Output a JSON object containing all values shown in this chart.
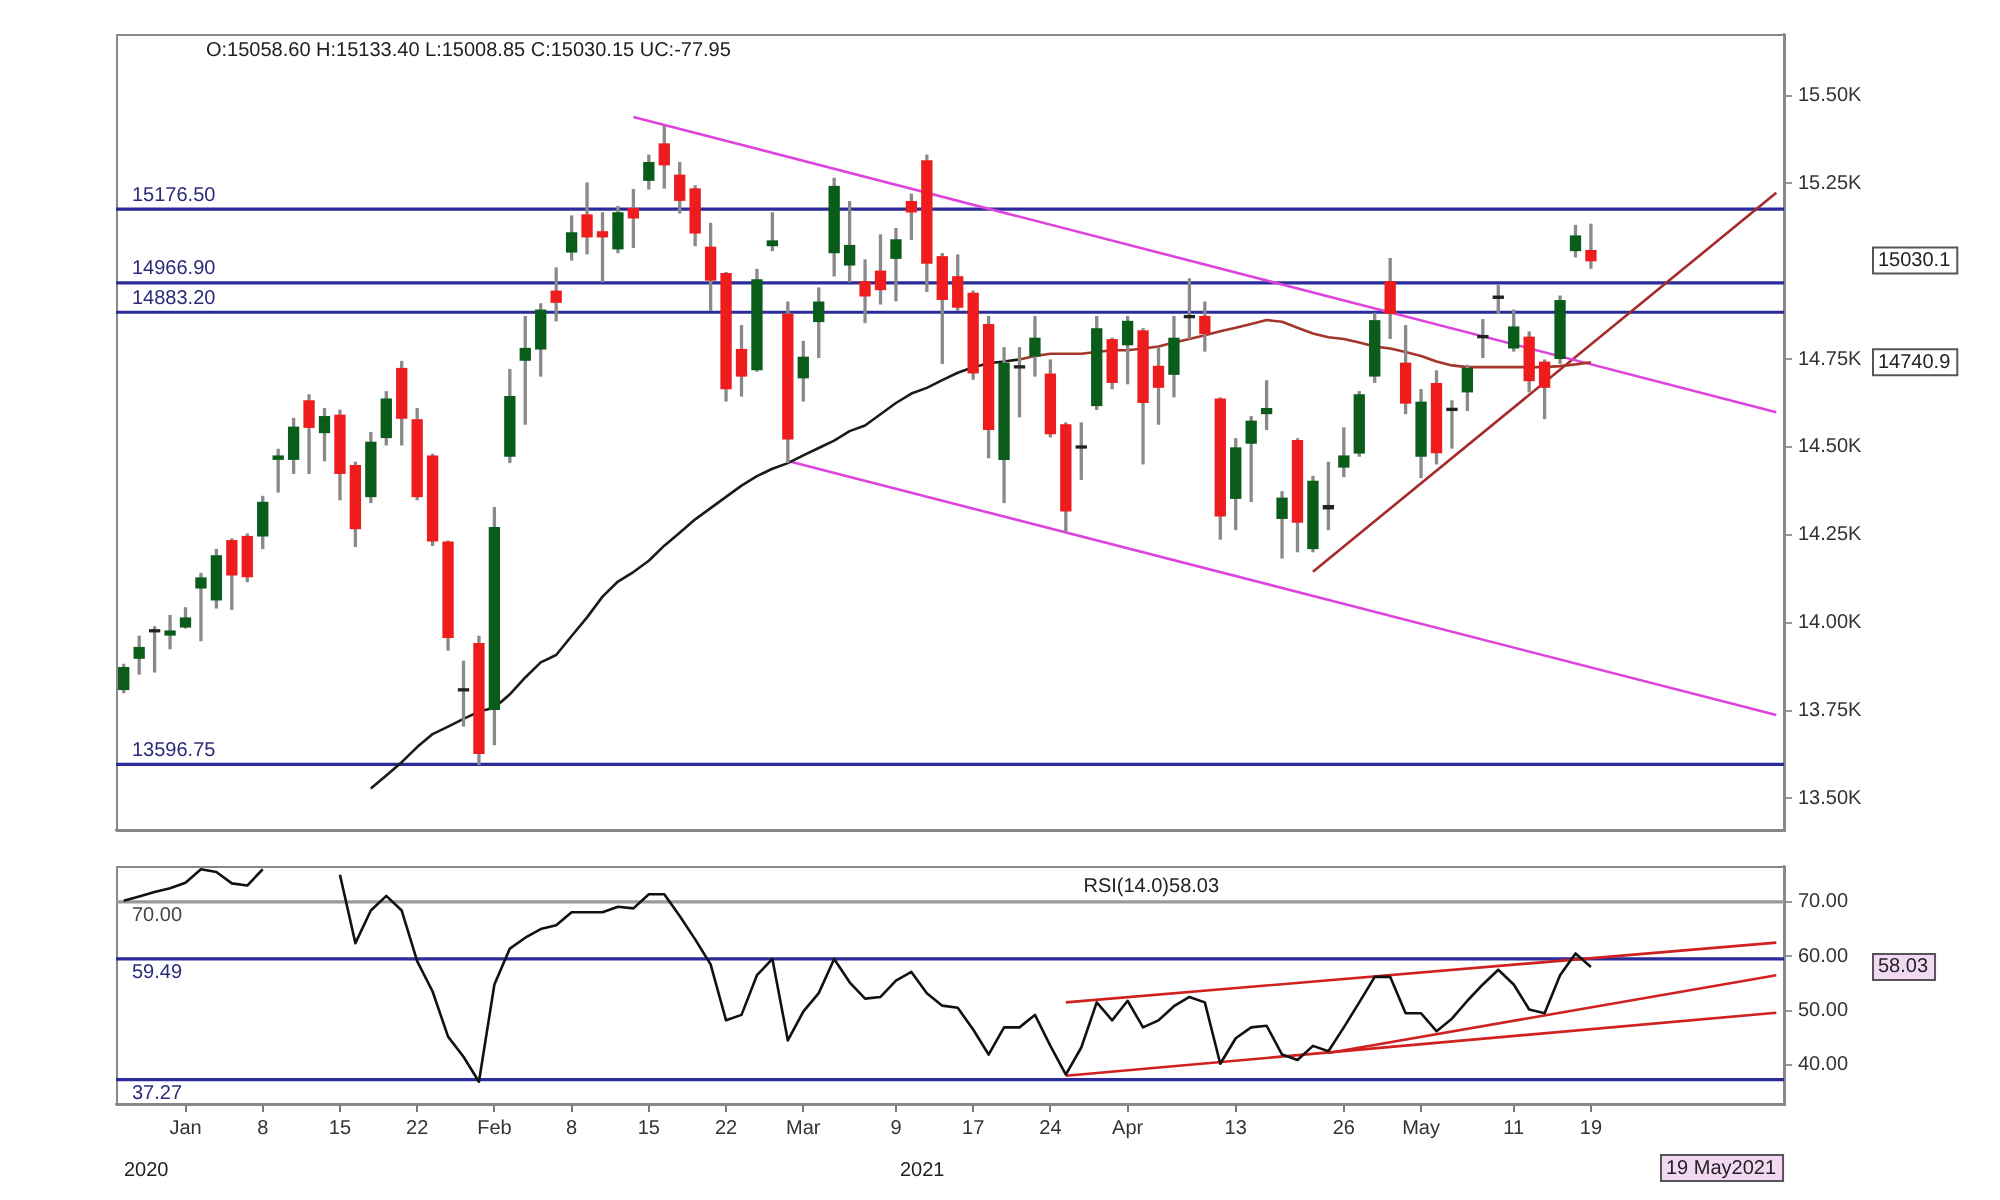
{
  "chart_data": [
    {
      "type": "candlestick",
      "categories": [
        null,
        null,
        null,
        null,
        null,
        null,
        null,
        null,
        null,
        null,
        null,
        null,
        null,
        null,
        null,
        null,
        null,
        null,
        null,
        null,
        null,
        null,
        null,
        null,
        null,
        null,
        null,
        null,
        null,
        null,
        null,
        null,
        null,
        null,
        null,
        null,
        null,
        null,
        null,
        null,
        null,
        null,
        null,
        null,
        null,
        null,
        null,
        null,
        null,
        null,
        null,
        null,
        null,
        null,
        null,
        null,
        null,
        null,
        null,
        null,
        null,
        null,
        null,
        null,
        null,
        null,
        null,
        null,
        null,
        null,
        null,
        null,
        null,
        null,
        null,
        null,
        null,
        null,
        null,
        null,
        null,
        null,
        null,
        null,
        null,
        null,
        null,
        null,
        null,
        null,
        null,
        null,
        null,
        null,
        null,
        null,
        null,
        null,
        null,
        null,
        null,
        null,
        null,
        null,
        null,
        null,
        null,
        null
      ],
      "ohlc": [
        [
          13810,
          13881,
          13801,
          13872
        ],
        [
          13899,
          13961,
          13854,
          13929
        ],
        [
          13976,
          13988,
          13860,
          13974
        ],
        [
          13965,
          14020,
          13926,
          13976
        ],
        [
          13988,
          14042,
          13985,
          14013
        ],
        [
          14099,
          14140,
          13949,
          14127
        ],
        [
          14065,
          14208,
          14042,
          14190
        ],
        [
          14233,
          14238,
          14038,
          14136
        ],
        [
          14245,
          14252,
          14117,
          14131
        ],
        [
          14247,
          14359,
          14211,
          14342
        ],
        [
          14465,
          14493,
          14372,
          14474
        ],
        [
          14465,
          14581,
          14425,
          14556
        ],
        [
          14631,
          14648,
          14425,
          14556
        ],
        [
          14541,
          14609,
          14461,
          14586
        ],
        [
          14590,
          14604,
          14350,
          14425
        ],
        [
          14447,
          14456,
          14217,
          14268
        ],
        [
          14359,
          14541,
          14342,
          14513
        ],
        [
          14527,
          14657,
          14506,
          14636
        ],
        [
          14723,
          14743,
          14506,
          14582
        ],
        [
          14577,
          14609,
          14350,
          14359
        ],
        [
          14474,
          14479,
          14220,
          14233
        ],
        [
          14229,
          14232,
          13922,
          13958
        ],
        [
          13810,
          13890,
          13706,
          13806
        ],
        [
          13940,
          13961,
          13596.75,
          13628
        ],
        [
          13753,
          14327,
          13653,
          14270
        ],
        [
          14474,
          14720,
          14456,
          14643
        ],
        [
          14747,
          14871,
          14565,
          14780
        ],
        [
          14779,
          14907,
          14702,
          14889
        ],
        [
          14943,
          15009,
          14859,
          14912
        ],
        [
          15055,
          15157,
          15032,
          15109
        ],
        [
          15160,
          15251,
          15050,
          15098
        ],
        [
          15112,
          15166,
          14970,
          15098
        ],
        [
          15064,
          15184,
          15053,
          15166
        ],
        [
          15178,
          15232,
          15068,
          15152
        ],
        [
          15259,
          15330,
          15234,
          15309
        ],
        [
          15362,
          15412,
          15237,
          15303
        ],
        [
          15273,
          15309,
          15166,
          15202
        ],
        [
          15234,
          15243,
          15073,
          15109
        ],
        [
          15068,
          15136,
          14889,
          14975
        ],
        [
          14993,
          14996,
          14631,
          14666
        ],
        [
          14777,
          14845,
          14645,
          14702
        ],
        [
          14720,
          15005,
          14716,
          14975
        ],
        [
          15073,
          15166,
          15059,
          15086
        ],
        [
          14877,
          14912,
          14456,
          14523
        ],
        [
          14697,
          14800,
          14631,
          14755
        ],
        [
          14857,
          14952,
          14755,
          14912
        ],
        [
          15053,
          15264,
          14987,
          15241
        ],
        [
          15018,
          15198,
          14970,
          15073
        ],
        [
          14970,
          15032,
          14854,
          14930
        ],
        [
          15000,
          15103,
          14907,
          14948
        ],
        [
          15037,
          15121,
          14916,
          15089
        ],
        [
          15198,
          15219,
          15091,
          15169
        ],
        [
          15314,
          15330,
          14943,
          15023
        ],
        [
          15041,
          15050,
          14738,
          14920
        ],
        [
          14984,
          15046,
          14889,
          14898
        ],
        [
          14937,
          14943,
          14693,
          14711
        ],
        [
          14848,
          14871,
          14470,
          14550
        ],
        [
          14465,
          14782,
          14342,
          14738
        ],
        [
          14729,
          14782,
          14586,
          14725
        ],
        [
          14759,
          14871,
          14702,
          14809
        ],
        [
          14707,
          14747,
          14529,
          14538
        ],
        [
          14563,
          14568,
          14259,
          14318
        ],
        [
          14500,
          14568,
          14408,
          14497
        ],
        [
          14618,
          14871,
          14607,
          14836
        ],
        [
          14805,
          14809,
          14666,
          14684
        ],
        [
          14791,
          14871,
          14680,
          14857
        ],
        [
          14830,
          14836,
          14452,
          14627
        ],
        [
          14729,
          14782,
          14565,
          14670
        ],
        [
          14707,
          14871,
          14643,
          14809
        ],
        [
          14871,
          14978,
          14809,
          14868
        ],
        [
          14871,
          14912,
          14773,
          14823
        ],
        [
          14636,
          14639,
          14238,
          14304
        ],
        [
          14354,
          14523,
          14265,
          14497
        ],
        [
          14511,
          14586,
          14345,
          14573
        ],
        [
          14595,
          14688,
          14550,
          14609
        ],
        [
          14297,
          14372,
          14184,
          14354
        ],
        [
          14518,
          14523,
          14202,
          14286
        ],
        [
          14211,
          14416,
          14202,
          14402
        ],
        [
          14324,
          14456,
          14265,
          14333
        ],
        [
          14443,
          14554,
          14416,
          14474
        ],
        [
          14483,
          14657,
          14474,
          14648
        ],
        [
          14702,
          14880,
          14684,
          14859
        ],
        [
          14970,
          15036,
          14809,
          14880
        ],
        [
          14738,
          14845,
          14595,
          14625
        ],
        [
          14474,
          14663,
          14413,
          14627
        ],
        [
          14680,
          14716,
          14452,
          14484
        ],
        [
          14604,
          14631,
          14497,
          14609
        ],
        [
          14657,
          14732,
          14604,
          14723
        ],
        [
          14814,
          14862,
          14755,
          14811
        ],
        [
          14929,
          14959,
          14880,
          14923
        ],
        [
          14782,
          14889,
          14773,
          14841
        ],
        [
          14812,
          14827,
          14657,
          14689
        ],
        [
          14741,
          14747,
          14581,
          14670
        ],
        [
          14752,
          14929,
          14738,
          14916
        ],
        [
          15059,
          15130,
          15041,
          15100
        ],
        [
          15058.6,
          15133.4,
          15008.85,
          15030.15
        ],
        null,
        null,
        null,
        null,
        null,
        null,
        null,
        null,
        null,
        null,
        null,
        null
      ],
      "colors": [
        "#0a5c1a",
        "#0a5c1a",
        "#222222",
        "#0a5c1a",
        "#0a5c1a",
        "#0a5c1a",
        "#0a5c1a",
        "#ee1c1c",
        "#ee1c1c",
        "#0a5c1a",
        "#0a5c1a",
        "#0a5c1a",
        "#ee1c1c",
        "#0a5c1a",
        "#ee1c1c",
        "#ee1c1c",
        "#0a5c1a",
        "#0a5c1a",
        "#ee1c1c",
        "#ee1c1c",
        "#ee1c1c",
        "#ee1c1c",
        "#222222",
        "#ee1c1c",
        "#0a5c1a",
        "#0a5c1a",
        "#0a5c1a",
        "#0a5c1a",
        "#ee1c1c",
        "#0a5c1a",
        "#ee1c1c",
        "#ee1c1c",
        "#0a5c1a",
        "#ee1c1c",
        "#0a5c1a",
        "#ee1c1c",
        "#ee1c1c",
        "#ee1c1c",
        "#ee1c1c",
        "#ee1c1c",
        "#ee1c1c",
        "#0a5c1a",
        "#0a5c1a",
        "#ee1c1c",
        "#0a5c1a",
        "#0a5c1a",
        "#0a5c1a",
        "#0a5c1a",
        "#ee1c1c",
        "#ee1c1c",
        "#0a5c1a",
        "#ee1c1c",
        "#ee1c1c",
        "#ee1c1c",
        "#ee1c1c",
        "#ee1c1c",
        "#ee1c1c",
        "#0a5c1a",
        "#222222",
        "#0a5c1a",
        "#ee1c1c",
        "#ee1c1c",
        "#222222",
        "#0a5c1a",
        "#ee1c1c",
        "#0a5c1a",
        "#ee1c1c",
        "#ee1c1c",
        "#0a5c1a",
        "#222222",
        "#ee1c1c",
        "#ee1c1c",
        "#0a5c1a",
        "#0a5c1a",
        "#0a5c1a",
        "#0a5c1a",
        "#ee1c1c",
        "#0a5c1a",
        "#222222",
        "#0a5c1a",
        "#0a5c1a",
        "#0a5c1a",
        "#ee1c1c",
        "#ee1c1c",
        "#0a5c1a",
        "#ee1c1c",
        "#222222",
        "#0a5c1a",
        "#222222",
        "#222222",
        "#0a5c1a",
        "#ee1c1c",
        "#ee1c1c",
        "#0a5c1a",
        "#0a5c1a",
        "#ee1c1c",
        null,
        null,
        null,
        null,
        null,
        null,
        null,
        null,
        null,
        null,
        null,
        null
      ],
      "series": [
        {
          "type": "line",
          "color": "#1a1a1a",
          "values": [
            null,
            null,
            null,
            null,
            null,
            null,
            null,
            null,
            null,
            null,
            null,
            null,
            null,
            null,
            null,
            null,
            13528,
            13565,
            13603,
            13646,
            13683,
            13704,
            13726,
            13747,
            13758,
            13796,
            13844,
            13887,
            13908,
            13962,
            14015,
            14074,
            14117,
            14144,
            14176,
            14219,
            14256,
            14294,
            14326,
            14358,
            14390,
            14417,
            14438,
            14454,
            14476,
            14497,
            14518,
            14545,
            14561,
            14593,
            14625,
            14652,
            14668,
            14690,
            14711,
            14727,
            14738,
            14743,
            14749,
            null,
            null,
            null,
            null,
            null,
            null,
            null,
            null,
            null,
            null,
            null,
            null,
            null,
            null,
            null,
            null,
            null,
            null,
            null,
            null,
            null,
            null,
            null,
            null,
            null,
            null,
            null,
            null,
            null,
            null,
            null,
            null,
            null,
            null,
            null,
            null,
            null,
            null,
            null,
            null,
            null,
            null,
            null,
            null,
            null,
            null,
            null,
            null,
            null
          ]
        },
        {
          "type": "line",
          "color": "#a3352b",
          "values": [
            null,
            null,
            null,
            null,
            null,
            null,
            null,
            null,
            null,
            null,
            null,
            null,
            null,
            null,
            null,
            null,
            null,
            null,
            null,
            null,
            null,
            null,
            null,
            null,
            null,
            null,
            null,
            null,
            null,
            null,
            null,
            null,
            null,
            null,
            null,
            null,
            null,
            null,
            null,
            null,
            null,
            null,
            null,
            null,
            null,
            null,
            null,
            null,
            null,
            null,
            null,
            null,
            null,
            null,
            null,
            null,
            null,
            null,
            14749,
            14759,
            14765,
            14765,
            14765,
            14770,
            14775,
            14775,
            14780,
            14786,
            14797,
            14807,
            14818,
            14829,
            14839,
            14850,
            14861,
            14856,
            14839,
            14823,
            14812,
            14807,
            14797,
            14786,
            14780,
            14770,
            14759,
            14743,
            14732,
            14727,
            14727,
            14727,
            14727,
            14727,
            14727,
            14730,
            14735,
            14741,
            null,
            null,
            null,
            null,
            null,
            null,
            null,
            null,
            null,
            null,
            null,
            null
          ]
        },
        {
          "type": "line",
          "color": "#dd44dd",
          "values": [
            null,
            null,
            null,
            null,
            null,
            null,
            null,
            null,
            null,
            null,
            null,
            null,
            null,
            null,
            null,
            null,
            null,
            null,
            null,
            null,
            null,
            null,
            null,
            null,
            null,
            null,
            null,
            null,
            null,
            null,
            null,
            null,
            null,
            15439,
            null,
            null,
            null,
            null,
            null,
            null,
            null,
            null,
            null,
            null,
            null,
            null,
            null,
            null,
            null,
            null,
            null,
            null,
            null,
            null,
            null,
            null,
            null,
            null,
            null,
            null,
            null,
            null,
            null,
            null,
            null,
            null,
            null,
            null,
            null,
            null,
            null,
            null,
            null,
            null,
            null,
            null,
            null,
            null,
            null,
            null,
            null,
            null,
            null,
            null,
            null,
            null,
            null,
            null,
            null,
            null,
            null,
            null,
            null,
            null,
            null,
            null,
            null,
            null,
            null,
            null,
            null,
            null,
            null,
            null,
            null,
            null,
            null,
            14599
          ]
        },
        {
          "type": "line",
          "color": "#dd44dd",
          "values": [
            null,
            null,
            null,
            null,
            null,
            null,
            null,
            null,
            null,
            null,
            null,
            null,
            null,
            null,
            null,
            null,
            null,
            null,
            null,
            null,
            null,
            null,
            null,
            null,
            null,
            null,
            null,
            null,
            null,
            null,
            null,
            null,
            null,
            null,
            null,
            null,
            null,
            null,
            null,
            null,
            null,
            null,
            null,
            14460,
            null,
            null,
            null,
            null,
            null,
            null,
            null,
            null,
            null,
            null,
            null,
            null,
            null,
            null,
            null,
            null,
            null,
            null,
            null,
            null,
            null,
            null,
            null,
            null,
            null,
            null,
            null,
            null,
            null,
            null,
            null,
            null,
            null,
            null,
            null,
            null,
            null,
            null,
            null,
            null,
            null,
            null,
            null,
            null,
            null,
            null,
            null,
            null,
            null,
            null,
            null,
            null,
            null,
            null,
            null,
            null,
            null,
            null,
            null,
            null,
            null,
            null,
            null,
            13737
          ]
        },
        {
          "type": "line",
          "color": "#a52a2a",
          "values": [
            null,
            null,
            null,
            null,
            null,
            null,
            null,
            null,
            null,
            null,
            null,
            null,
            null,
            null,
            null,
            null,
            null,
            null,
            null,
            null,
            null,
            null,
            null,
            null,
            null,
            null,
            null,
            null,
            null,
            null,
            null,
            null,
            null,
            null,
            null,
            null,
            null,
            null,
            null,
            null,
            null,
            null,
            null,
            null,
            null,
            null,
            null,
            null,
            null,
            null,
            null,
            null,
            null,
            null,
            null,
            null,
            null,
            null,
            null,
            null,
            null,
            null,
            null,
            null,
            null,
            null,
            null,
            null,
            null,
            null,
            null,
            null,
            null,
            null,
            null,
            null,
            null,
            14145,
            null,
            null,
            null,
            null,
            null,
            null,
            null,
            null,
            null,
            null,
            null,
            null,
            null,
            null,
            null,
            null,
            null,
            null,
            null,
            null,
            null,
            null,
            null,
            null,
            null,
            null,
            null,
            null,
            null,
            15223
          ]
        }
      ],
      "ylim": [
        13410,
        15675
      ],
      "yticks": [
        {
          "value": 15500,
          "label": "15.50K"
        },
        {
          "value": 15250,
          "label": "15.25K"
        },
        {
          "value": 14750,
          "label": "14.75K"
        },
        {
          "value": 14500,
          "label": "14.50K"
        },
        {
          "value": 14250,
          "label": "14.25K"
        },
        {
          "value": 14000,
          "label": "14.00K"
        },
        {
          "value": 13750,
          "label": "13.75K"
        },
        {
          "value": 13500,
          "label": "13.50K"
        }
      ],
      "ref_lines": [
        {
          "axis": "y",
          "value": 15176.5,
          "label": "15176.50",
          "color": "#2b2b9a"
        },
        {
          "axis": "y",
          "value": 14966.9,
          "label": "14966.90",
          "color": "#2b2b9a"
        },
        {
          "axis": "y",
          "value": 14883.2,
          "label": "14883.20",
          "color": "#2b2b9a"
        },
        {
          "axis": "y",
          "value": 13596.75,
          "label": "13596.75",
          "color": "#2b2b9a"
        }
      ],
      "annotations": [
        "O:15058.60 H:15133.40 L:15008.85 C:15030.15 UC:-77.95",
        "15030.1",
        "14740.9"
      ],
      "tick_labels": "y"
    },
    {
      "type": "line",
      "categories": [
        null,
        null,
        null,
        null,
        "Jan",
        null,
        null,
        null,
        null,
        "8",
        null,
        null,
        null,
        null,
        "15",
        null,
        null,
        null,
        null,
        "22",
        null,
        null,
        null,
        null,
        "Feb",
        null,
        null,
        null,
        null,
        "8",
        null,
        null,
        null,
        null,
        "15",
        null,
        null,
        null,
        null,
        "22",
        null,
        null,
        null,
        null,
        "Mar",
        null,
        null,
        null,
        null,
        null,
        "9",
        null,
        null,
        null,
        null,
        "17",
        null,
        null,
        null,
        null,
        "24",
        null,
        null,
        null,
        null,
        "Apr",
        null,
        null,
        null,
        null,
        null,
        null,
        "13",
        null,
        null,
        null,
        null,
        null,
        null,
        "26",
        null,
        null,
        null,
        null,
        "May",
        null,
        null,
        null,
        null,
        null,
        "11",
        null,
        null,
        null,
        null,
        "19",
        null,
        null,
        null,
        null,
        null,
        null,
        null,
        null,
        null,
        null,
        null,
        null
      ],
      "series": [
        {
          "color": "#111111",
          "values": [
            70.2,
            71.0,
            71.8,
            72.5,
            73.5,
            76.0,
            75.5,
            73.4,
            73.0,
            76.0,
            null,
            null,
            null,
            null,
            75.0,
            62.4,
            68.4,
            71.1,
            68.4,
            59.1,
            53.5,
            45.2,
            41.5,
            36.9,
            54.8,
            61.4,
            63.4,
            65.0,
            65.7,
            68.1,
            68.1,
            68.1,
            69.1,
            68.8,
            71.4,
            71.4,
            67.4,
            63.1,
            58.5,
            48.2,
            49.2,
            56.5,
            59.5,
            44.5,
            49.8,
            53.2,
            59.5,
            55.2,
            52.2,
            52.5,
            55.5,
            57.1,
            53.2,
            50.9,
            50.5,
            46.5,
            41.9,
            46.9,
            46.9,
            49.2,
            43.5,
            38.2,
            43.2,
            51.5,
            48.2,
            51.8,
            46.9,
            48.2,
            50.8,
            52.5,
            51.5,
            40.2,
            44.9,
            46.9,
            47.2,
            41.9,
            40.9,
            43.5,
            42.5,
            46.9,
            51.5,
            56.2,
            56.2,
            49.5,
            49.5,
            46.2,
            48.5,
            51.8,
            54.8,
            57.5,
            54.8,
            50.2,
            49.5,
            56.5,
            60.5,
            58.03,
            null,
            null,
            null,
            null,
            null,
            null,
            null,
            null,
            null,
            null,
            null,
            null
          ]
        },
        {
          "color": "#d02020",
          "values": [
            null,
            null,
            null,
            null,
            null,
            null,
            null,
            null,
            null,
            null,
            null,
            null,
            null,
            null,
            null,
            null,
            null,
            null,
            null,
            null,
            null,
            null,
            null,
            null,
            null,
            null,
            null,
            null,
            null,
            null,
            null,
            null,
            null,
            null,
            null,
            null,
            null,
            null,
            null,
            null,
            null,
            null,
            null,
            null,
            null,
            null,
            null,
            null,
            null,
            null,
            null,
            null,
            null,
            null,
            null,
            null,
            null,
            null,
            null,
            null,
            null,
            51.5,
            null,
            null,
            null,
            null,
            null,
            null,
            null,
            null,
            null,
            null,
            null,
            null,
            null,
            null,
            null,
            null,
            null,
            null,
            null,
            null,
            null,
            null,
            null,
            null,
            null,
            null,
            null,
            null,
            null,
            null,
            null,
            null,
            null,
            null,
            null,
            null,
            null,
            null,
            null,
            null,
            null,
            null,
            null,
            null,
            null,
            62.5
          ]
        },
        {
          "color": "#d02020",
          "values": [
            null,
            null,
            null,
            null,
            null,
            null,
            null,
            null,
            null,
            null,
            null,
            null,
            null,
            null,
            null,
            null,
            null,
            null,
            null,
            null,
            null,
            null,
            null,
            null,
            null,
            null,
            null,
            null,
            null,
            null,
            null,
            null,
            null,
            null,
            null,
            null,
            null,
            null,
            null,
            null,
            null,
            null,
            null,
            null,
            null,
            null,
            null,
            null,
            null,
            null,
            null,
            null,
            null,
            null,
            null,
            null,
            null,
            null,
            null,
            null,
            null,
            null,
            null,
            null,
            null,
            null,
            null,
            null,
            null,
            null,
            null,
            null,
            null,
            null,
            null,
            null,
            null,
            null,
            42.2,
            null,
            null,
            null,
            null,
            null,
            null,
            null,
            null,
            null,
            null,
            null,
            null,
            null,
            null,
            null,
            null,
            null,
            null,
            null,
            null,
            null,
            null,
            null,
            null,
            null,
            null,
            null,
            null,
            56.5
          ]
        },
        {
          "color": "#d02020",
          "values": [
            null,
            null,
            null,
            null,
            null,
            null,
            null,
            null,
            null,
            null,
            null,
            null,
            null,
            null,
            null,
            null,
            null,
            null,
            null,
            null,
            null,
            null,
            null,
            null,
            null,
            null,
            null,
            null,
            null,
            null,
            null,
            null,
            null,
            null,
            null,
            null,
            null,
            null,
            null,
            null,
            null,
            null,
            null,
            null,
            null,
            null,
            null,
            null,
            null,
            null,
            null,
            null,
            null,
            null,
            null,
            null,
            null,
            null,
            null,
            null,
            null,
            38.0,
            null,
            null,
            null,
            null,
            null,
            null,
            null,
            null,
            null,
            null,
            null,
            null,
            null,
            null,
            null,
            null,
            null,
            null,
            null,
            null,
            null,
            null,
            null,
            null,
            null,
            null,
            null,
            null,
            null,
            null,
            null,
            null,
            null,
            null,
            null,
            null,
            null,
            null,
            null,
            null,
            null,
            null,
            null,
            null,
            null,
            49.6
          ]
        }
      ],
      "ylim": [
        32.8,
        76.6
      ],
      "yticks": [
        {
          "value": 70,
          "label": "70.00"
        },
        {
          "value": 60,
          "label": "60.00"
        },
        {
          "value": 50,
          "label": "50.00"
        },
        {
          "value": 40,
          "label": "40.00"
        }
      ],
      "ref_lines": [
        {
          "axis": "y",
          "value": 70,
          "label": "70.00",
          "color": "#999999"
        },
        {
          "axis": "y",
          "value": 59.49,
          "label": "59.49",
          "color": "#2b2b9a"
        },
        {
          "axis": "y",
          "value": 37.27,
          "label": "37.27",
          "color": "#2b2b9a"
        }
      ],
      "annotations": [
        "RSI(14.0)58.03",
        "2020",
        "2021",
        "19 May2021",
        "58.03"
      ]
    }
  ]
}
